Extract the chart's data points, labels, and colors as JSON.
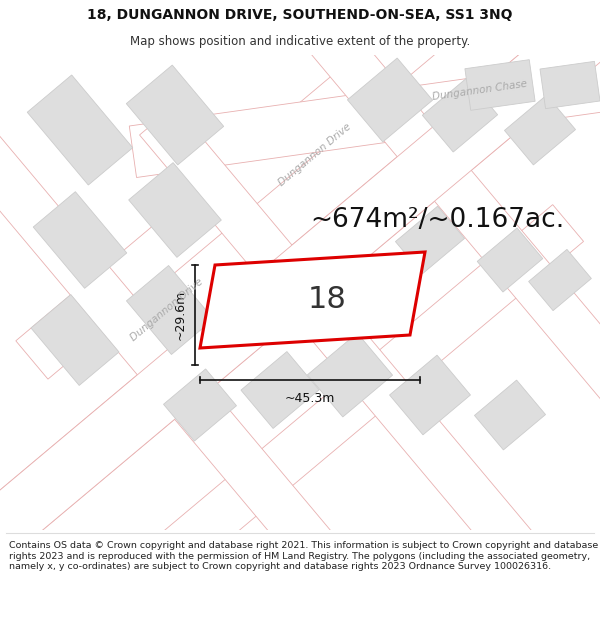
{
  "title_line1": "18, DUNGANNON DRIVE, SOUTHEND-ON-SEA, SS1 3NQ",
  "title_line2": "Map shows position and indicative extent of the property.",
  "area_text": "~674m²/~0.167ac.",
  "house_number": "18",
  "dim_width": "~45.3m",
  "dim_height": "~29.6m",
  "road_label_drive_upper": "Dungannon Drive",
  "road_label_drive_lower": "Dungannon Drive",
  "road_label_chase": "Dungannon Chase",
  "footer_text": "Contains OS data © Crown copyright and database right 2021. This information is subject to Crown copyright and database rights 2023 and is reproduced with the permission of HM Land Registry. The polygons (including the associated geometry, namely x, y co-ordinates) are subject to Crown copyright and database rights 2023 Ordnance Survey 100026316.",
  "bg_color": "#ffffff",
  "map_bg_color": "#f2f2f2",
  "plot_border_color": "#dd0000",
  "road_fill": "#ffffff",
  "road_edge": "#e8b0b0",
  "road_center_line": "#e8b0b0",
  "building_fill": "#dedede",
  "building_edge": "#cccccc",
  "label_color": "#aaaaaa",
  "dim_color": "#111111",
  "title_fontsize": 10,
  "subtitle_fontsize": 8.5,
  "area_fontsize": 19,
  "number_fontsize": 22,
  "dim_fontsize": 9,
  "road_label_fontsize": 7.5,
  "footer_fontsize": 6.8
}
